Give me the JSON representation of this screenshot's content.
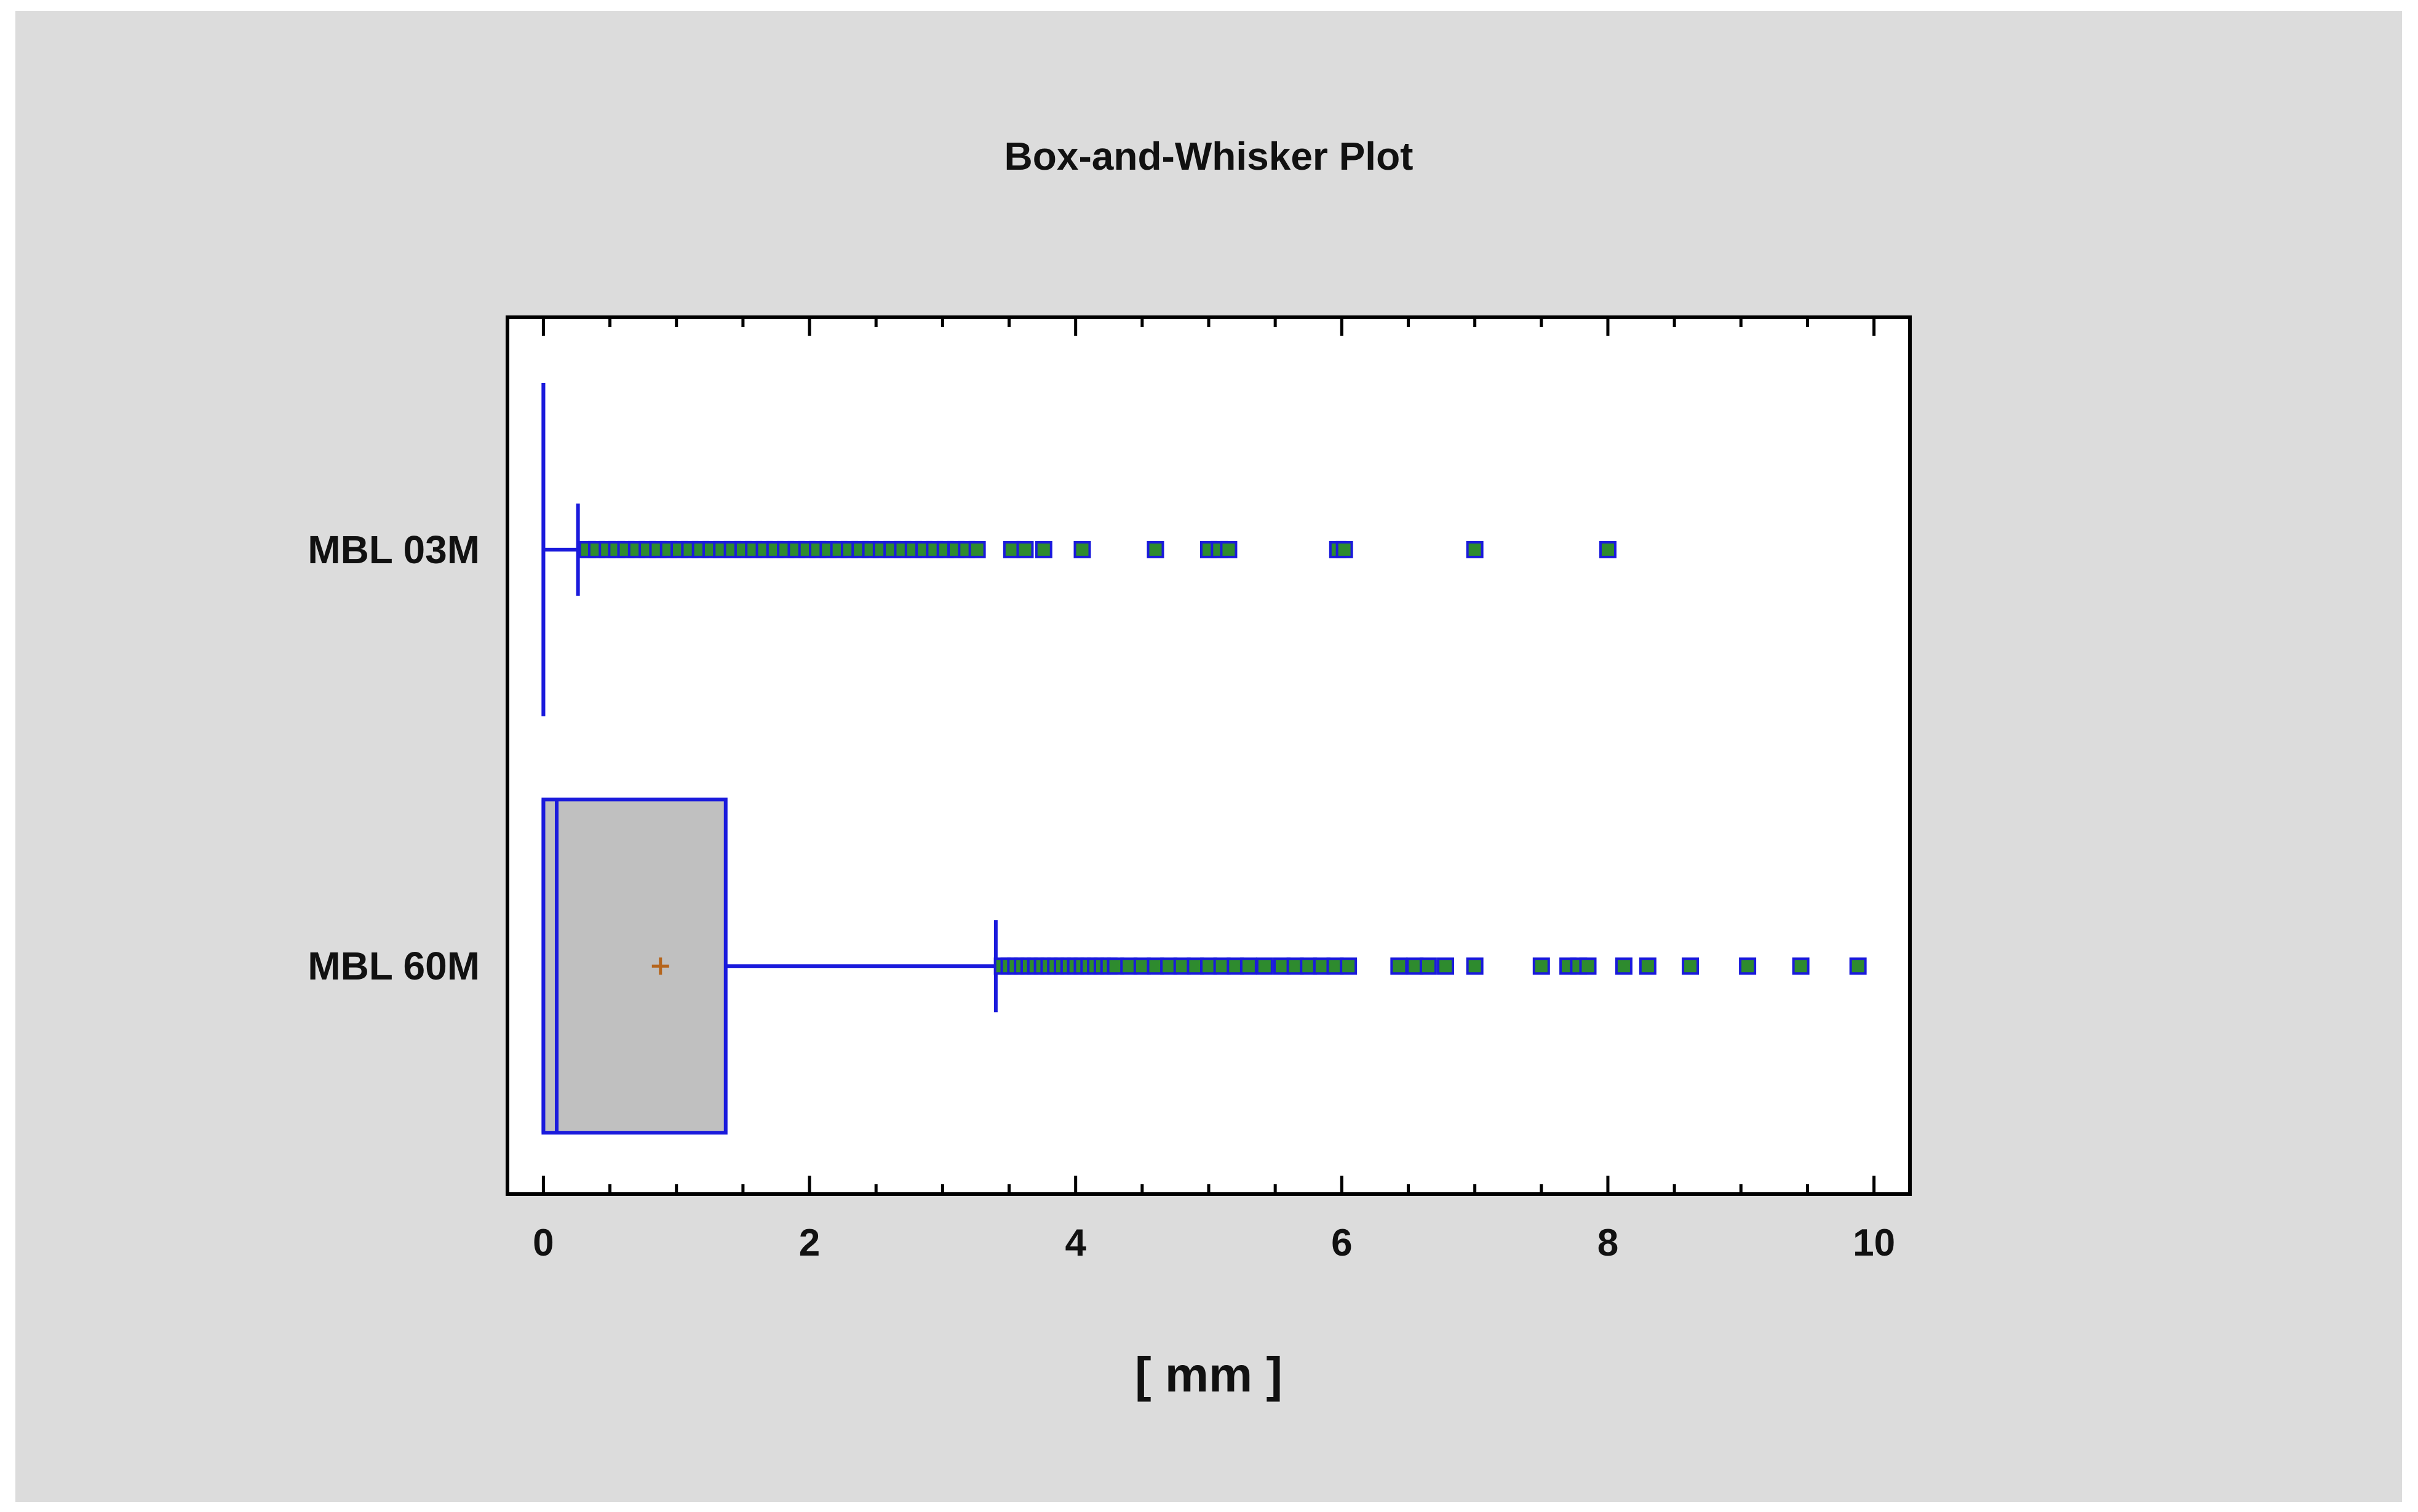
{
  "chart_data": {
    "type": "boxplot",
    "title": "Box-and-Whisker Plot",
    "xlabel": "[ mm ]",
    "xlim": [
      -0.27,
      10.27
    ],
    "x_ticks": [
      0,
      2,
      4,
      6,
      8,
      10
    ],
    "grid": false,
    "legend": "none",
    "colors": {
      "box_stroke": "#1a1adc",
      "box_fill": "#c0c0c0",
      "outlier_fill": "#2e8b2e",
      "mean_marker": "#b5651d",
      "frame": "#000000",
      "background": "#dcdcdc"
    },
    "categories": [
      "MBL 03M",
      "MBL 60M"
    ],
    "series": [
      {
        "label": "MBL 03M",
        "min": 0,
        "q1": 0,
        "median": 0,
        "q3": 0,
        "whisker_high": 0.26,
        "mean": null,
        "outliers": [
          0.33,
          0.4,
          0.48,
          0.55,
          0.62,
          0.7,
          0.78,
          0.86,
          0.94,
          1.02,
          1.1,
          1.18,
          1.26,
          1.34,
          1.42,
          1.5,
          1.58,
          1.66,
          1.74,
          1.82,
          1.9,
          1.98,
          2.06,
          2.14,
          2.22,
          2.3,
          2.38,
          2.46,
          2.54,
          2.62,
          2.7,
          2.78,
          2.86,
          2.94,
          3.02,
          3.1,
          3.18,
          3.26,
          3.52,
          3.62,
          3.76,
          4.05,
          4.6,
          5.0,
          5.08,
          5.15,
          5.97,
          6.02,
          7.0,
          8.0
        ]
      },
      {
        "label": "MBL 60M",
        "min": 0,
        "q1": 0,
        "median": 0.1,
        "q3": 1.37,
        "whisker_high": 3.4,
        "mean": 0.88,
        "outliers": [
          3.45,
          3.5,
          3.55,
          3.6,
          3.65,
          3.7,
          3.75,
          3.8,
          3.85,
          3.9,
          3.95,
          4.0,
          4.05,
          4.1,
          4.15,
          4.2,
          4.25,
          4.3,
          4.4,
          4.5,
          4.6,
          4.7,
          4.8,
          4.9,
          5.0,
          5.1,
          5.2,
          5.3,
          5.42,
          5.55,
          5.65,
          5.75,
          5.85,
          5.95,
          6.05,
          6.43,
          6.55,
          6.65,
          6.78,
          7.0,
          7.5,
          7.7,
          7.78,
          7.85,
          8.12,
          8.3,
          8.62,
          9.05,
          9.45,
          9.88
        ]
      }
    ]
  }
}
